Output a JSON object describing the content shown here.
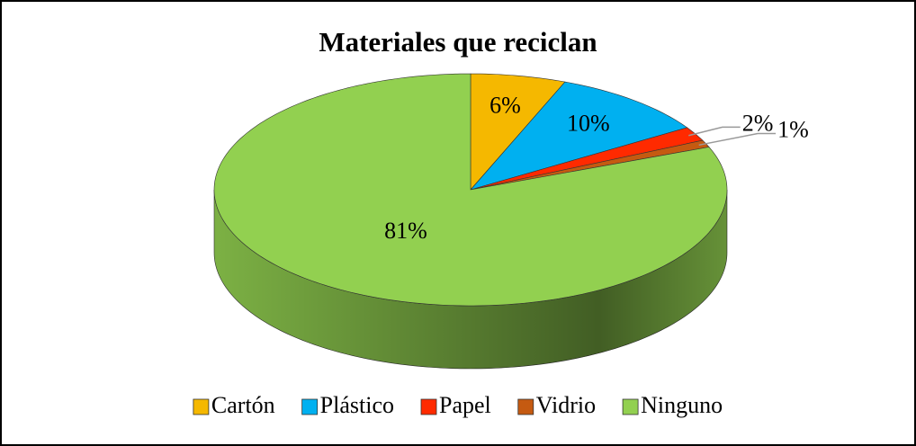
{
  "chart_data": {
    "type": "pie3d",
    "title": "Materiales que reciclan",
    "categories": [
      "Cartón",
      "Plástico",
      "Papel",
      "Vidrio",
      "Ninguno"
    ],
    "values": [
      6,
      10,
      2,
      1,
      81
    ],
    "value_labels": [
      "6%",
      "10%",
      "2%",
      "1%",
      "81%"
    ],
    "colors": [
      "#f5b800",
      "#00b0f0",
      "#ff2a00",
      "#c55a11",
      "#92d050"
    ],
    "legend": "bottom"
  }
}
